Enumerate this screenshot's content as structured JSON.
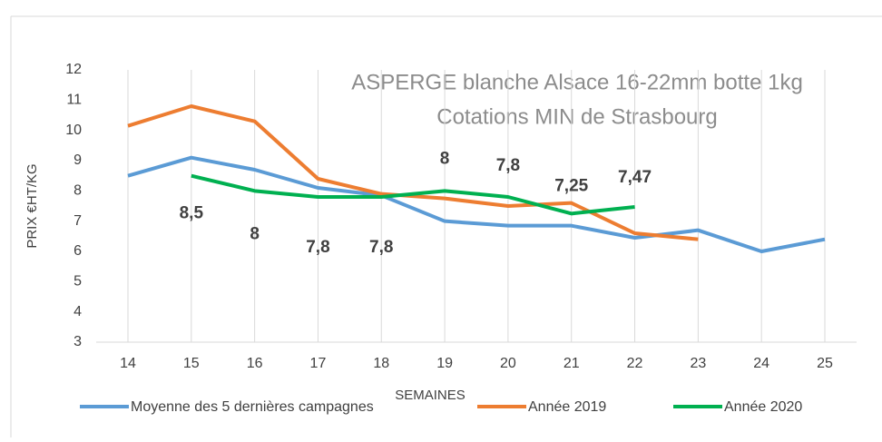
{
  "chart_data": {
    "type": "line",
    "title": "ASPERGE blanche Alsace 16-22mm botte 1kg",
    "subtitle": "Cotations MIN de Strasbourg",
    "y_label": "PRIX €HT/KG",
    "x_label": "SEMAINES",
    "categories": [
      "14",
      "15",
      "16",
      "17",
      "18",
      "19",
      "20",
      "21",
      "22",
      "23",
      "24",
      "25"
    ],
    "ylim": [
      3,
      12
    ],
    "yticks": [
      3,
      4,
      5,
      6,
      7,
      8,
      9,
      10,
      11,
      12
    ],
    "grid": "vertical",
    "legend": "bottom",
    "series": [
      {
        "name": "Moyenne des 5 dernières campagnes",
        "color": "#5b9bd5",
        "values": [
          8.5,
          9.1,
          8.7,
          8.1,
          7.85,
          7.0,
          6.85,
          6.85,
          6.45,
          6.7,
          6.0,
          6.4
        ]
      },
      {
        "name": "Année 2019",
        "color": "#ed7d31",
        "values": [
          10.15,
          10.8,
          10.3,
          8.4,
          7.9,
          7.75,
          7.5,
          7.6,
          6.6,
          6.4,
          null,
          null
        ]
      },
      {
        "name": "Année 2020",
        "color": "#00b050",
        "values": [
          null,
          8.5,
          8,
          7.8,
          7.8,
          8,
          7.8,
          7.25,
          7.47,
          null,
          null,
          null
        ],
        "value_labels": [
          null,
          "8,5",
          "8",
          "7,8",
          "7,8",
          "8",
          "7,8",
          "7,25",
          "7,47",
          null,
          null,
          null
        ]
      }
    ]
  }
}
